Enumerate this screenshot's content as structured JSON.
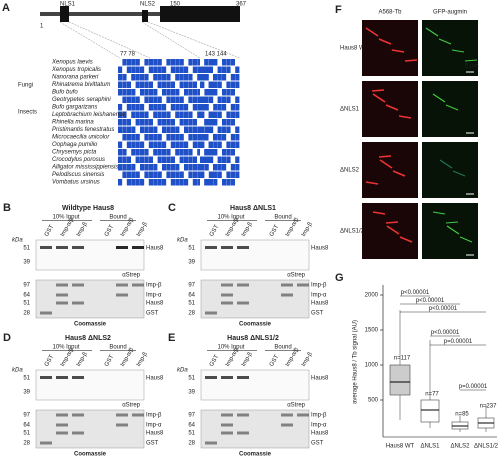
{
  "panelA": {
    "letter": "A",
    "domain": [
      "1",
      "NLS1",
      "NLS2",
      "150",
      "367"
    ],
    "residues": [
      "77 78",
      "143 144"
    ],
    "groups": [
      "Fungi",
      "Insects"
    ],
    "species": [
      "Xenopus laevis",
      "Xenopus tropicalis",
      "Nanorana parkeri",
      "Rhinatrema bivittatum",
      "Bufo bufo",
      "Geotrypetes seraphini",
      "Bufo gargarizans",
      "Leptobrachium leishanense",
      "Rhinella marina",
      "Pristimantis fenestratus",
      "Microcaecilia unicolor",
      "Oophaga pumilio",
      "Chrysemys picta",
      "Crocodylus porosus",
      "Alligator mississippiensis",
      "Pelodiscus sinensis",
      "Vombatus ursinus"
    ]
  },
  "blots": [
    {
      "letter": "B",
      "title": "Wildtype Haus8"
    },
    {
      "letter": "C",
      "title": "Haus8 ΔNLS1"
    },
    {
      "letter": "D",
      "title": "Haus8 ΔNLS2"
    },
    {
      "letter": "E",
      "title": "Haus8 ΔNLS1/2"
    }
  ],
  "blot_common": {
    "input": "10% Input",
    "bound": "Bound",
    "lanes": [
      "GST",
      "Imp-α/β",
      "Imp-β",
      "GST",
      "Imp-α/β",
      "Imp-β"
    ],
    "kda": "kDa",
    "top_markers": [
      "51",
      "39"
    ],
    "top_labels": [
      "Haus8"
    ],
    "top_stain": "αStrep",
    "bottom_markers": [
      "97",
      "64",
      "51",
      "28"
    ],
    "bottom_labels": [
      "Imp-β",
      "Imp-α",
      "Haus8",
      "GST"
    ],
    "bottom_stain": "Coomassie"
  },
  "panelF": {
    "letter": "F",
    "columns": [
      "A568-Tb",
      "GFP-augmin"
    ],
    "rows": [
      "Haus8 WT",
      "ΔNLS1",
      "ΔNLS2",
      "ΔNLS1/2"
    ],
    "scale": "5 µm"
  },
  "panelG": {
    "letter": "G",
    "ylabel": "average Haus8 / Tb signal (AU)",
    "yticks": [
      500,
      1000,
      1500,
      2000
    ],
    "categories": [
      "Haus8 WT",
      "ΔNLS1",
      "ΔNLS2",
      "ΔNLS1/2"
    ],
    "n": [
      "n=117",
      "n=77",
      "n=85",
      "n=237"
    ],
    "pvalues": [
      "p<0.00001",
      "p<0.00001",
      "p<0.00001",
      "p<0.00001",
      "p=0.00001",
      "p=0.00001"
    ]
  }
}
